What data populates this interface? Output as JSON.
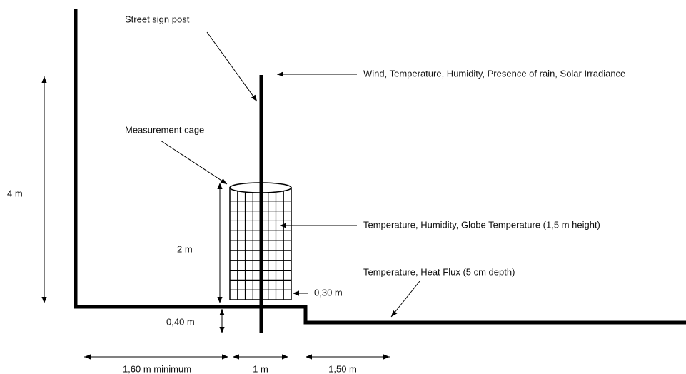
{
  "labels": {
    "street_sign_post": "Street sign post",
    "top_sensors": "Wind, Temperature, Humidity, Presence of rain, Solar Irradiance",
    "measurement_cage": "Measurement cage",
    "cage_sensors": "Temperature, Humidity, Globe Temperature (1,5 m height)",
    "ground_sensors": "Temperature, Heat Flux (5 cm depth)",
    "height_post": "4 m",
    "height_cage": "2 m",
    "cage_gap": "0,30 m",
    "step_height": "0,40 m",
    "dist_wall": "1,60 m minimum",
    "dist_cage": "1 m",
    "dist_after": "1,50 m"
  }
}
